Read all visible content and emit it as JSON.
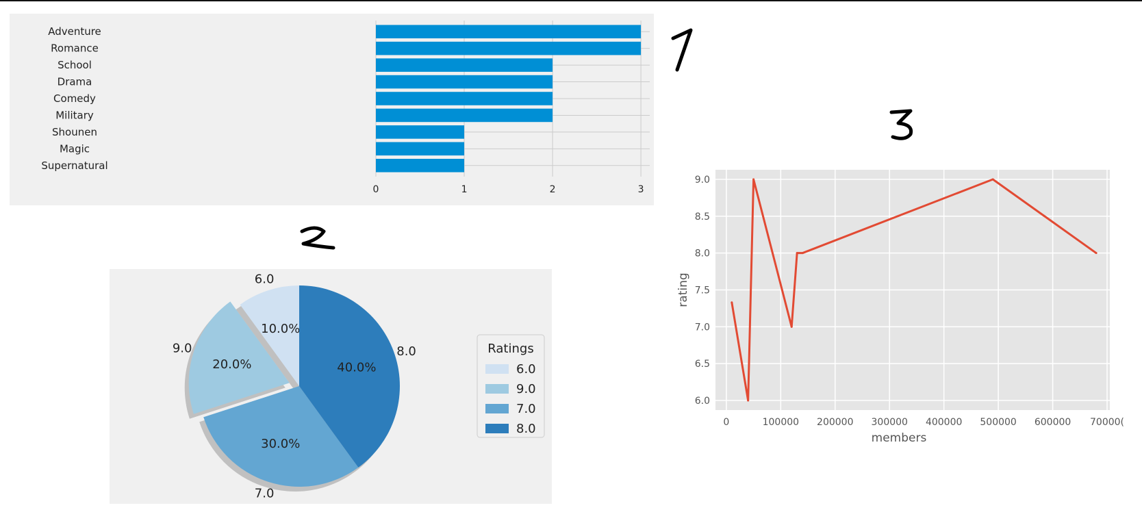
{
  "annotations": {
    "bar": "1",
    "pie": "2",
    "line": "3"
  },
  "chart_data": [
    {
      "type": "bar",
      "orientation": "horizontal",
      "categories": [
        "Adventure",
        "Romance",
        "School",
        "Drama",
        "Comedy",
        "Military",
        "Shounen",
        "Magic",
        "Supernatural"
      ],
      "values": [
        3,
        3,
        2,
        2,
        2,
        2,
        1,
        1,
        1
      ],
      "xticks": [
        "0",
        "1",
        "2",
        "3"
      ],
      "xlim": [
        0,
        3.1
      ],
      "grid": true,
      "color": "#008fd5"
    },
    {
      "type": "pie",
      "labels": [
        "6.0",
        "9.0",
        "7.0",
        "8.0"
      ],
      "values": [
        10.0,
        20.0,
        30.0,
        40.0
      ],
      "percent_labels": [
        "10.0%",
        "20.0%",
        "30.0%",
        "40.0%"
      ],
      "colors": [
        "#d0e1f2",
        "#9ecae1",
        "#63a6d2",
        "#2d7dbb"
      ],
      "exploded": [
        "9.0"
      ],
      "shadow": true,
      "legend_title": "Ratings",
      "legend_placement": "right"
    },
    {
      "type": "line",
      "x": [
        10000,
        40000,
        50000,
        120000,
        130000,
        140000,
        490000,
        680000
      ],
      "y": [
        7.33,
        6.0,
        9.0,
        7.0,
        8.0,
        8.0,
        9.0,
        8.0
      ],
      "xlabel": "members",
      "ylabel": "rating",
      "xlim": [
        -20000,
        705000
      ],
      "ylim": [
        5.87,
        9.13
      ],
      "xticks": [
        "0",
        "100000",
        "200000",
        "300000",
        "400000",
        "500000",
        "600000",
        "70000("
      ],
      "yticks": [
        "6.0",
        "6.5",
        "7.0",
        "7.5",
        "8.0",
        "8.5",
        "9.0"
      ],
      "grid": true,
      "color": "#e24a33"
    }
  ]
}
